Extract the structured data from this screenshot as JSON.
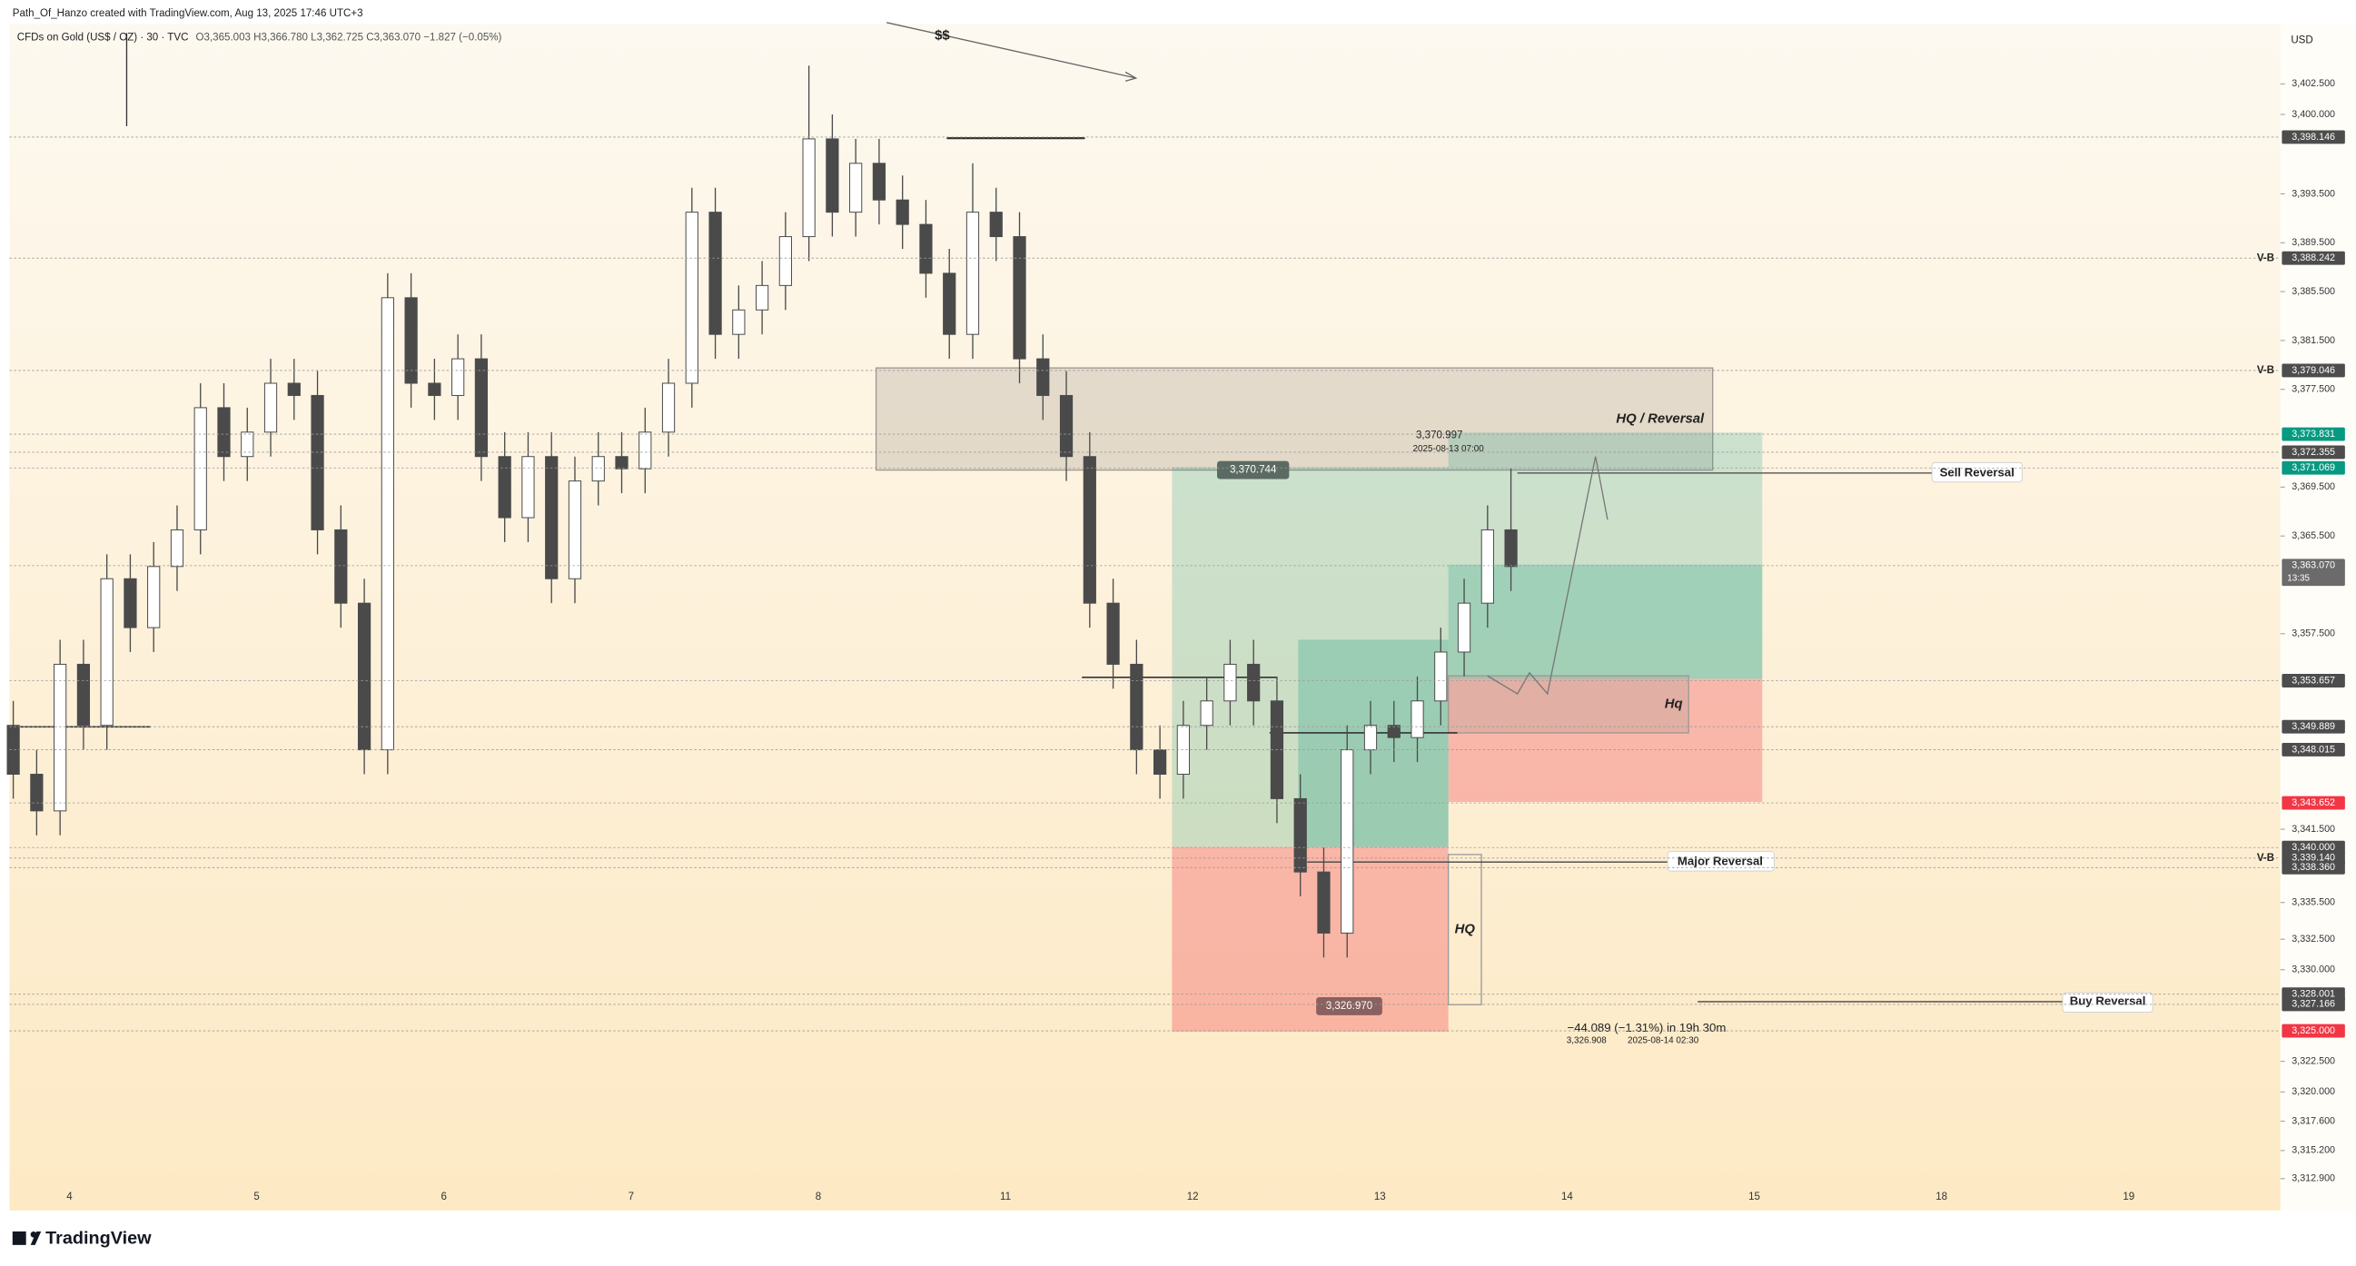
{
  "chart_data": {
    "type": "candlestick",
    "author_line": "Path_Of_Hanzo created with TradingView.com, Aug 13, 2025 17:46 UTC+3",
    "title": "CFDs on Gold (US$ / OZ) · 30 · TVC",
    "ohlc_line": "O3,365.003 H3,366.780 L3,362.725 C3,363.070 −1.827 (−0.05%)",
    "currency": "USD",
    "brand": "TradingView",
    "up_color": "#ffffff",
    "down_color": "#4a4a4a",
    "wick_color": "#4a4a4a",
    "categories": [
      "4",
      "5",
      "6",
      "7",
      "8",
      "11",
      "12",
      "13",
      "14",
      "15",
      "18",
      "19"
    ],
    "xlim": [
      -0.32,
      11.81
    ],
    "ylim": [
      3310.3,
      3407.4
    ],
    "grid": false,
    "yticks": [
      {
        "value": 3402.5,
        "label": "3,402.500"
      },
      {
        "value": 3400,
        "label": "3,400.000"
      },
      {
        "value": 3393.5,
        "label": "3,393.500"
      },
      {
        "value": 3389.5,
        "label": "3,389.500"
      },
      {
        "value": 3385.5,
        "label": "3,385.500"
      },
      {
        "value": 3381.5,
        "label": "3,381.500"
      },
      {
        "value": 3377.5,
        "label": "3,377.500"
      },
      {
        "value": 3369.5,
        "label": "3,369.500"
      },
      {
        "value": 3365.5,
        "label": "3,365.500"
      },
      {
        "value": 3357.5,
        "label": "3,357.500"
      },
      {
        "value": 3341.5,
        "label": "3,341.500"
      },
      {
        "value": 3335.5,
        "label": "3,335.500"
      },
      {
        "value": 3332.5,
        "label": "3,332.500"
      },
      {
        "value": 3330,
        "label": "3,330.000"
      },
      {
        "value": 3322.5,
        "label": "3,322.500"
      },
      {
        "value": 3320,
        "label": "3,320.000"
      },
      {
        "value": 3317.6,
        "label": "3,317.600"
      },
      {
        "value": 3315.2,
        "label": "3,315.200"
      },
      {
        "value": 3312.9,
        "label": "3,312.900"
      }
    ],
    "price_lines": [
      {
        "value": 3398.146,
        "label": "3,398.146",
        "color": "#4d4d4d"
      },
      {
        "value": 3388.242,
        "label": "3,388.242",
        "color": "#4d4d4d",
        "note": "V-B"
      },
      {
        "value": 3379.046,
        "label": "3,379.046",
        "color": "#4d4d4d",
        "note": "V-B"
      },
      {
        "value": 3373.831,
        "label": "3,373.831",
        "color": "#089981"
      },
      {
        "value": 3372.355,
        "label": "3,372.355",
        "color": "#4d4d4d"
      },
      {
        "value": 3371.069,
        "label": "3,371.069",
        "color": "#089981"
      },
      {
        "value": 3363.07,
        "label": "3,363.070",
        "color": "#6b6b6b",
        "countdown": "13:35"
      },
      {
        "value": 3353.657,
        "label": "3,353.657",
        "color": "#4d4d4d"
      },
      {
        "value": 3349.889,
        "label": "3,349.889",
        "color": "#4d4d4d"
      },
      {
        "value": 3348.015,
        "label": "3,348.015",
        "color": "#4d4d4d"
      },
      {
        "value": 3343.652,
        "label": "3,343.652",
        "color": "#f23645"
      },
      {
        "value": 3340,
        "label": "3,340.000",
        "color": "#4d4d4d"
      },
      {
        "value": 3339.14,
        "label": "3,339.140",
        "color": "#4d4d4d",
        "note": "V-B"
      },
      {
        "value": 3338.36,
        "label": "3,338.360",
        "color": "#4d4d4d"
      },
      {
        "value": 3328.001,
        "label": "3,328.001",
        "color": "#4d4d4d"
      },
      {
        "value": 3327.166,
        "label": "3,327.166",
        "color": "#4d4d4d"
      },
      {
        "value": 3325,
        "label": "3,325.000",
        "color": "#f23645"
      }
    ],
    "annotations": [
      "$$",
      "HQ / Reversal",
      "Sell Reversal",
      "Hq",
      "Major Reversal",
      "HQ",
      "Buy Reversal",
      "3,370.997",
      "2025-08-13 07:00",
      "3,370.744",
      "3,326.970",
      "−44.089 (−1.31%) in 19h 30m",
      "3,326.908",
      "2025-08-14  02:30"
    ],
    "ohlc": {
      "x": [
        -0.3,
        -0.175,
        -0.05,
        0.075,
        0.2,
        0.325,
        0.45,
        0.575,
        0.7,
        0.825,
        0.95,
        1.075,
        1.2,
        1.325,
        1.45,
        1.575,
        1.7,
        1.825,
        1.95,
        2.075,
        2.2,
        2.325,
        2.45,
        2.575,
        2.7,
        2.825,
        2.95,
        3.075,
        3.2,
        3.325,
        3.45,
        3.575,
        3.7,
        3.825,
        3.95,
        4.075,
        4.2,
        4.325,
        4.45,
        4.575,
        4.7,
        4.825,
        4.95,
        5.075,
        5.2,
        5.325,
        5.45,
        5.575,
        5.7,
        5.825,
        5.95,
        6.075,
        6.2,
        6.325,
        6.45,
        6.575,
        6.7,
        6.825,
        6.95,
        7.075,
        7.2,
        7.325,
        7.45,
        7.575,
        7.7
      ],
      "open": [
        3350,
        3346,
        3343,
        3355,
        3350,
        3362,
        3358,
        3363,
        3366,
        3376,
        3372,
        3374,
        3378,
        3377,
        3366,
        3360,
        3348,
        3385,
        3378,
        3377,
        3380,
        3372,
        3367,
        3372,
        3362,
        3370,
        3372,
        3371,
        3374,
        3378,
        3392,
        3382,
        3384,
        3386,
        3390,
        3398,
        3392,
        3396,
        3393,
        3391,
        3387,
        3382,
        3392,
        3390,
        3380,
        3377,
        3372,
        3360,
        3355,
        3348,
        3346,
        3350,
        3352,
        3355,
        3352,
        3344,
        3338,
        3333,
        3348,
        3350,
        3349,
        3352,
        3356,
        3360,
        3366
      ],
      "high": [
        3352,
        3348,
        3357,
        3357,
        3364,
        3364,
        3365,
        3368,
        3378,
        3378,
        3376,
        3380,
        3380,
        3379,
        3368,
        3362,
        3387,
        3387,
        3380,
        3382,
        3382,
        3374,
        3374,
        3374,
        3372,
        3374,
        3374,
        3376,
        3380,
        3394,
        3394,
        3386,
        3388,
        3392,
        3404,
        3400,
        3398,
        3398,
        3395,
        3393,
        3389,
        3396,
        3394,
        3392,
        3382,
        3379,
        3374,
        3362,
        3357,
        3350,
        3352,
        3354,
        3357,
        3357,
        3354,
        3346,
        3340,
        3350,
        3352,
        3352,
        3354,
        3358,
        3362,
        3368,
        3371
      ],
      "low": [
        3344,
        3341,
        3341,
        3348,
        3348,
        3356,
        3356,
        3361,
        3364,
        3370,
        3370,
        3372,
        3375,
        3364,
        3358,
        3346,
        3346,
        3376,
        3375,
        3375,
        3370,
        3365,
        3365,
        3360,
        3360,
        3368,
        3369,
        3369,
        3372,
        3376,
        3380,
        3380,
        3382,
        3384,
        3388,
        3390,
        3390,
        3391,
        3389,
        3385,
        3380,
        3380,
        3388,
        3378,
        3375,
        3370,
        3358,
        3353,
        3346,
        3344,
        3344,
        3348,
        3350,
        3350,
        3342,
        3336,
        3331,
        3331,
        3346,
        3347,
        3347,
        3350,
        3354,
        3358,
        3361
      ],
      "close": [
        3346,
        3343,
        3355,
        3350,
        3362,
        3358,
        3363,
        3366,
        3376,
        3372,
        3374,
        3378,
        3377,
        3366,
        3360,
        3348,
        3385,
        3378,
        3377,
        3380,
        3372,
        3367,
        3372,
        3362,
        3370,
        3372,
        3371,
        3374,
        3378,
        3392,
        3382,
        3384,
        3386,
        3390,
        3398,
        3392,
        3396,
        3393,
        3391,
        3387,
        3382,
        3392,
        3390,
        3380,
        3377,
        3372,
        3360,
        3355,
        3348,
        3346,
        3350,
        3352,
        3355,
        3352,
        3344,
        3338,
        3333,
        3348,
        3350,
        3349,
        3352,
        3356,
        3360,
        3366,
        3363
      ]
    }
  }
}
